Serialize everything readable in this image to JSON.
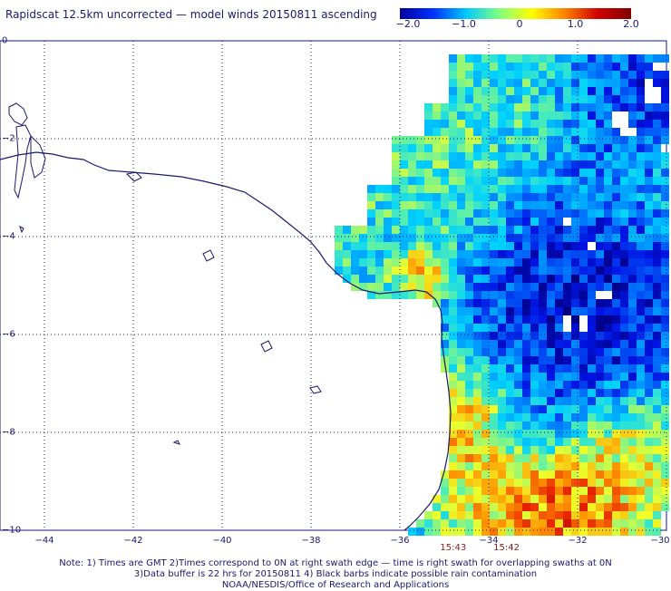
{
  "title": "Rapidscat 12.5km uncorrected — model winds 20150811 ascending",
  "colorbar": {
    "ticks": [
      "−2.0",
      "−1.0",
      "0",
      "1.0",
      "2.0"
    ],
    "colors": [
      "#0000a0",
      "#0030ff",
      "#00c8ff",
      "#80ff80",
      "#ffff00",
      "#ff8000",
      "#d00000",
      "#800000"
    ]
  },
  "axes": {
    "x_ticks": [
      "−44",
      "−42",
      "−40",
      "−38",
      "−36",
      "−34",
      "−32",
      "−30"
    ],
    "y_ticks": [
      "0",
      "−2",
      "−4",
      "−6",
      "−8",
      "−10"
    ],
    "lon_range": [
      -45,
      -30
    ],
    "lat_range": [
      -10,
      0
    ]
  },
  "swath_times": [
    {
      "label": "15:43",
      "lon": -34.8
    },
    {
      "label": "15:42",
      "lon": -33.6
    }
  ],
  "notes": [
    "Note: 1) Times are GMT 2)Times correspond to 0N at right swath edge — time is right swath for overlapping swaths at 0N",
    "3)Data buffer is 22 hrs for 20150811 4) Black barbs indicate possible rain contamination",
    "NOAA/NESDIS/Office of Research and Applications"
  ],
  "colors": {
    "coast": "#1a1a6e",
    "text": "#1a1a6e",
    "time_text": "#8b1a1a"
  }
}
